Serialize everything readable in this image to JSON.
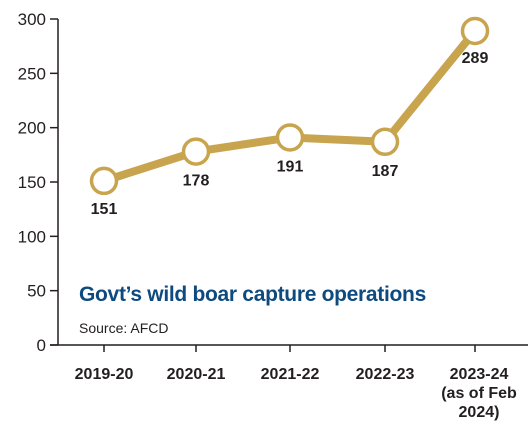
{
  "chart_data": {
    "type": "line",
    "title": "Govt’s wild boar capture operations",
    "source": "Source: AFCD",
    "categories": [
      [
        "2019-20"
      ],
      [
        "2020-21"
      ],
      [
        "2021-22"
      ],
      [
        "2022-23"
      ],
      [
        "2023-24",
        "(as of Feb",
        "2024)"
      ]
    ],
    "values": [
      151,
      178,
      191,
      187,
      289
    ],
    "data_labels": [
      "151",
      "178",
      "191",
      "187",
      "289"
    ],
    "y_ticks": [
      "0",
      "50",
      "100",
      "150",
      "200",
      "250",
      "300"
    ],
    "ylim": [
      0,
      300
    ],
    "grid": false,
    "line_color": "#c9a44f",
    "title_color": "#0d4a7f"
  }
}
